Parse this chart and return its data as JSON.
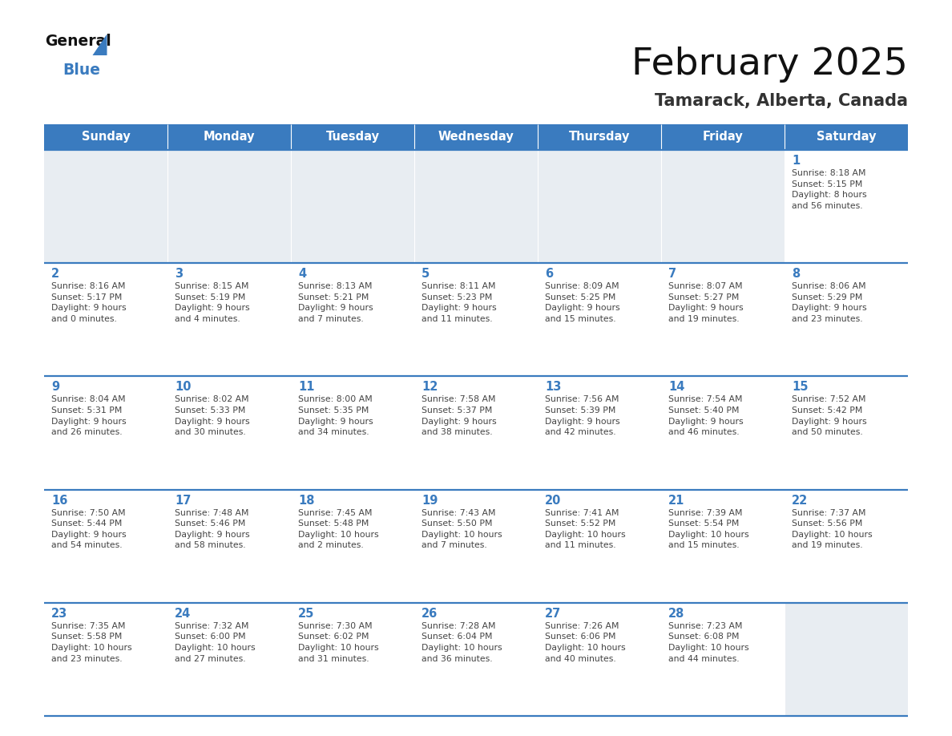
{
  "title": "February 2025",
  "subtitle": "Tamarack, Alberta, Canada",
  "header_bg": "#3a7bbf",
  "header_text": "#ffffff",
  "day_names": [
    "Sunday",
    "Monday",
    "Tuesday",
    "Wednesday",
    "Thursday",
    "Friday",
    "Saturday"
  ],
  "cell_bg_empty": "#e8edf2",
  "cell_bg_filled": "#ffffff",
  "cell_bg_last_empty": "#e8edf2",
  "divider_color": "#3a7bbf",
  "day_number_color": "#3a7bbf",
  "text_color": "#444444",
  "weeks": [
    [
      {
        "day": null,
        "info": null
      },
      {
        "day": null,
        "info": null
      },
      {
        "day": null,
        "info": null
      },
      {
        "day": null,
        "info": null
      },
      {
        "day": null,
        "info": null
      },
      {
        "day": null,
        "info": null
      },
      {
        "day": 1,
        "info": "Sunrise: 8:18 AM\nSunset: 5:15 PM\nDaylight: 8 hours\nand 56 minutes."
      }
    ],
    [
      {
        "day": 2,
        "info": "Sunrise: 8:16 AM\nSunset: 5:17 PM\nDaylight: 9 hours\nand 0 minutes."
      },
      {
        "day": 3,
        "info": "Sunrise: 8:15 AM\nSunset: 5:19 PM\nDaylight: 9 hours\nand 4 minutes."
      },
      {
        "day": 4,
        "info": "Sunrise: 8:13 AM\nSunset: 5:21 PM\nDaylight: 9 hours\nand 7 minutes."
      },
      {
        "day": 5,
        "info": "Sunrise: 8:11 AM\nSunset: 5:23 PM\nDaylight: 9 hours\nand 11 minutes."
      },
      {
        "day": 6,
        "info": "Sunrise: 8:09 AM\nSunset: 5:25 PM\nDaylight: 9 hours\nand 15 minutes."
      },
      {
        "day": 7,
        "info": "Sunrise: 8:07 AM\nSunset: 5:27 PM\nDaylight: 9 hours\nand 19 minutes."
      },
      {
        "day": 8,
        "info": "Sunrise: 8:06 AM\nSunset: 5:29 PM\nDaylight: 9 hours\nand 23 minutes."
      }
    ],
    [
      {
        "day": 9,
        "info": "Sunrise: 8:04 AM\nSunset: 5:31 PM\nDaylight: 9 hours\nand 26 minutes."
      },
      {
        "day": 10,
        "info": "Sunrise: 8:02 AM\nSunset: 5:33 PM\nDaylight: 9 hours\nand 30 minutes."
      },
      {
        "day": 11,
        "info": "Sunrise: 8:00 AM\nSunset: 5:35 PM\nDaylight: 9 hours\nand 34 minutes."
      },
      {
        "day": 12,
        "info": "Sunrise: 7:58 AM\nSunset: 5:37 PM\nDaylight: 9 hours\nand 38 minutes."
      },
      {
        "day": 13,
        "info": "Sunrise: 7:56 AM\nSunset: 5:39 PM\nDaylight: 9 hours\nand 42 minutes."
      },
      {
        "day": 14,
        "info": "Sunrise: 7:54 AM\nSunset: 5:40 PM\nDaylight: 9 hours\nand 46 minutes."
      },
      {
        "day": 15,
        "info": "Sunrise: 7:52 AM\nSunset: 5:42 PM\nDaylight: 9 hours\nand 50 minutes."
      }
    ],
    [
      {
        "day": 16,
        "info": "Sunrise: 7:50 AM\nSunset: 5:44 PM\nDaylight: 9 hours\nand 54 minutes."
      },
      {
        "day": 17,
        "info": "Sunrise: 7:48 AM\nSunset: 5:46 PM\nDaylight: 9 hours\nand 58 minutes."
      },
      {
        "day": 18,
        "info": "Sunrise: 7:45 AM\nSunset: 5:48 PM\nDaylight: 10 hours\nand 2 minutes."
      },
      {
        "day": 19,
        "info": "Sunrise: 7:43 AM\nSunset: 5:50 PM\nDaylight: 10 hours\nand 7 minutes."
      },
      {
        "day": 20,
        "info": "Sunrise: 7:41 AM\nSunset: 5:52 PM\nDaylight: 10 hours\nand 11 minutes."
      },
      {
        "day": 21,
        "info": "Sunrise: 7:39 AM\nSunset: 5:54 PM\nDaylight: 10 hours\nand 15 minutes."
      },
      {
        "day": 22,
        "info": "Sunrise: 7:37 AM\nSunset: 5:56 PM\nDaylight: 10 hours\nand 19 minutes."
      }
    ],
    [
      {
        "day": 23,
        "info": "Sunrise: 7:35 AM\nSunset: 5:58 PM\nDaylight: 10 hours\nand 23 minutes."
      },
      {
        "day": 24,
        "info": "Sunrise: 7:32 AM\nSunset: 6:00 PM\nDaylight: 10 hours\nand 27 minutes."
      },
      {
        "day": 25,
        "info": "Sunrise: 7:30 AM\nSunset: 6:02 PM\nDaylight: 10 hours\nand 31 minutes."
      },
      {
        "day": 26,
        "info": "Sunrise: 7:28 AM\nSunset: 6:04 PM\nDaylight: 10 hours\nand 36 minutes."
      },
      {
        "day": 27,
        "info": "Sunrise: 7:26 AM\nSunset: 6:06 PM\nDaylight: 10 hours\nand 40 minutes."
      },
      {
        "day": 28,
        "info": "Sunrise: 7:23 AM\nSunset: 6:08 PM\nDaylight: 10 hours\nand 44 minutes."
      },
      {
        "day": null,
        "info": null
      }
    ]
  ]
}
